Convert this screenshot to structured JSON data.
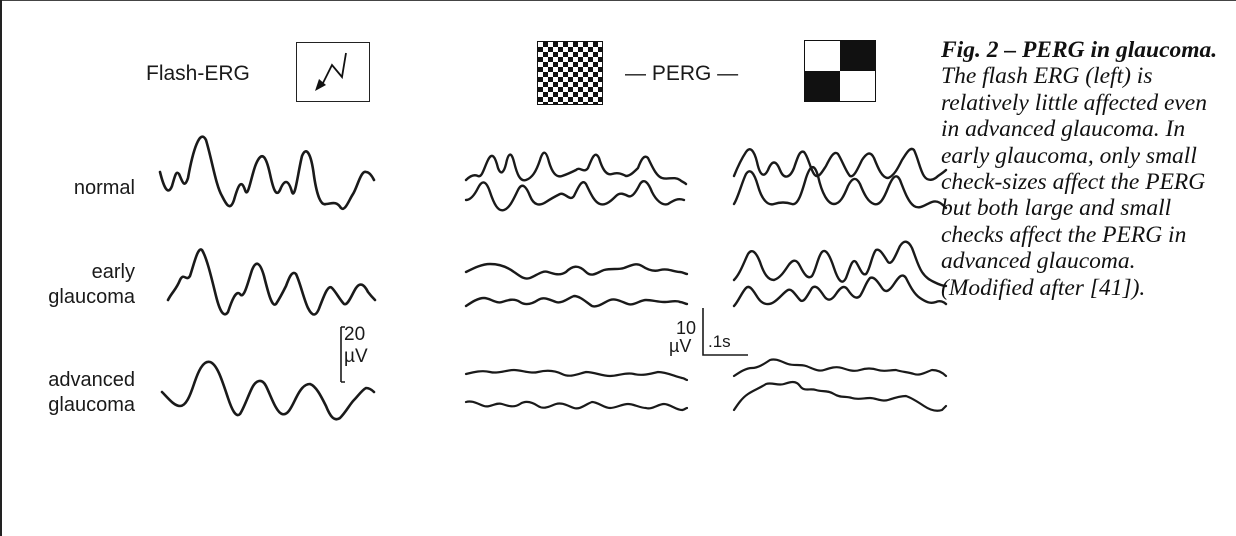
{
  "figure": {
    "header": {
      "flash_label": "Flash-ERG",
      "perg_label": "— PERG —",
      "flash_icon": "flash-stimulus-icon",
      "fine_check_icon": "fine-checkerboard-icon",
      "coarse_check_icon": "coarse-checkerboard-icon"
    },
    "rows": [
      {
        "label_lines": [
          "normal"
        ]
      },
      {
        "label_lines": [
          "early",
          "glaucoma"
        ]
      },
      {
        "label_lines": [
          "advanced",
          "glaucoma"
        ]
      }
    ],
    "scale_flash": {
      "value": "20",
      "unit": "µV"
    },
    "scale_perg": {
      "value": "10",
      "unit": "µV",
      "time": ".1s"
    }
  },
  "caption": {
    "lead": "Fig. 2 – PERG in glaucoma.",
    "body": "The flash ERG (left) is relatively little affected even in advanced glaucoma. In early glaucoma, only small check-sizes affect the PERG but both large and small checks affect the PERG in advanced glaucoma. (Modified after [41])."
  },
  "colors": {
    "trace": "#1a1a1a",
    "background": "#ffffff"
  }
}
